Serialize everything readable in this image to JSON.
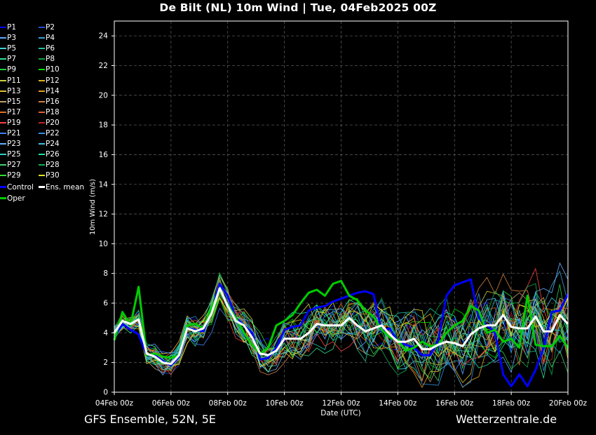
{
  "page": {
    "title": "De Bilt  (NL)  10m Wind | Tue, 04Feb2025 00Z",
    "footer_left": "GFS Ensemble, 52N, 5E",
    "footer_right": "Wetterzentrale.de"
  },
  "chart_data": {
    "type": "line",
    "title": "De Bilt  (NL)  10m Wind | Tue, 04Feb2025 00Z",
    "xlabel": "Date (UTC)",
    "ylabel": "10m Wind (m/s)",
    "x_ticks": [
      "04Feb 00z",
      "06Feb 00z",
      "08Feb 00z",
      "10Feb 00z",
      "12Feb 00z",
      "14Feb 00z",
      "16Feb 00z",
      "18Feb 00z",
      "20Feb 00z"
    ],
    "y_ticks": [
      "0",
      "2",
      "4",
      "6",
      "8",
      "10",
      "12",
      "14",
      "16",
      "18",
      "20",
      "22",
      "24"
    ],
    "ylim": [
      0,
      25
    ],
    "x_step_hours": 6,
    "grid": true,
    "legend_position": "left-outside",
    "background": "#000000",
    "series": [
      {
        "name": "Control",
        "color": "#0000ff",
        "width": 3,
        "values": [
          3.7,
          4.6,
          4.2,
          3.9,
          2.5,
          2.5,
          2.1,
          1.8,
          2.4,
          4.3,
          4.2,
          4.1,
          5.5,
          7.3,
          6.5,
          5.0,
          4.5,
          4.0,
          2.2,
          2.3,
          3.0,
          4.2,
          4.4,
          4.5,
          5.5,
          5.7,
          5.8,
          6.1,
          6.3,
          6.5,
          6.7,
          6.8,
          6.6,
          4.1,
          4.3,
          3.4,
          3.2,
          3.0,
          2.5,
          2.5,
          3.5,
          6.5,
          7.2,
          7.4,
          7.6,
          5.0,
          4.5,
          4.0,
          1.2,
          0.4,
          1.2,
          0.4,
          1.5,
          3.0,
          5.4,
          5.5,
          6.6
        ]
      },
      {
        "name": "Oper",
        "color": "#00cc00",
        "width": 3,
        "values": [
          3.5,
          5.4,
          4.5,
          7.1,
          2.5,
          2.6,
          2.4,
          2.3,
          2.5,
          4.5,
          4.6,
          4.3,
          5.7,
          6.8,
          5.9,
          5.0,
          4.0,
          3.2,
          2.6,
          3.0,
          4.5,
          4.8,
          5.2,
          6.0,
          6.7,
          6.9,
          6.5,
          7.3,
          7.5,
          6.5,
          6.2,
          5.5,
          5.1,
          4.2,
          3.7,
          3.5,
          2.8,
          3.0,
          3.4,
          3.1,
          3.2,
          4.0,
          4.5,
          4.8,
          5.8,
          5.5,
          4.0,
          4.2,
          3.4,
          3.6,
          3.0,
          6.5,
          3.2,
          3.1,
          3.1,
          3.8,
          3.0
        ]
      },
      {
        "name": "Ens. mean",
        "color": "#ffffff",
        "width": 3,
        "values": [
          4.0,
          4.8,
          4.6,
          4.9,
          2.6,
          2.4,
          2.0,
          1.9,
          2.5,
          4.3,
          4.1,
          4.3,
          5.3,
          7.0,
          5.8,
          4.8,
          4.5,
          3.7,
          2.6,
          2.5,
          2.8,
          3.6,
          3.6,
          3.6,
          4.0,
          4.6,
          4.5,
          4.5,
          4.5,
          5.0,
          4.5,
          4.1,
          4.3,
          4.5,
          3.9,
          3.4,
          3.4,
          3.6,
          2.9,
          2.9,
          3.2,
          3.4,
          3.3,
          3.1,
          3.9,
          4.3,
          4.5,
          4.5,
          5.2,
          4.4,
          4.3,
          4.3,
          5.1,
          4.1,
          4.1,
          5.2,
          4.6
        ]
      }
    ],
    "members": [
      {
        "name": "P1",
        "color": "#0000ff"
      },
      {
        "name": "P2",
        "color": "#1f4fd6"
      },
      {
        "name": "P3",
        "color": "#5aa8ff"
      },
      {
        "name": "P4",
        "color": "#3aa0cc"
      },
      {
        "name": "P5",
        "color": "#40d0d0"
      },
      {
        "name": "P6",
        "color": "#20c0a0"
      },
      {
        "name": "P7",
        "color": "#30e090"
      },
      {
        "name": "P8",
        "color": "#10a040"
      },
      {
        "name": "P9",
        "color": "#20d040"
      },
      {
        "name": "P10",
        "color": "#00e000"
      },
      {
        "name": "P11",
        "color": "#c8d040"
      },
      {
        "name": "P12",
        "color": "#d8b020"
      },
      {
        "name": "P13",
        "color": "#e0c030"
      },
      {
        "name": "P14",
        "color": "#e0a020"
      },
      {
        "name": "P15",
        "color": "#c0a070"
      },
      {
        "name": "P16",
        "color": "#d08040"
      },
      {
        "name": "P17",
        "color": "#e07020"
      },
      {
        "name": "P18",
        "color": "#e06030"
      },
      {
        "name": "P19",
        "color": "#ff4040"
      },
      {
        "name": "P20",
        "color": "#c02020"
      },
      {
        "name": "P21",
        "color": "#4080ff"
      },
      {
        "name": "P22",
        "color": "#3090e0"
      },
      {
        "name": "P23",
        "color": "#60b0ff"
      },
      {
        "name": "P24",
        "color": "#40c0e0"
      },
      {
        "name": "P25",
        "color": "#30d0c0"
      },
      {
        "name": "P26",
        "color": "#20e0a0"
      },
      {
        "name": "P27",
        "color": "#40d070"
      },
      {
        "name": "P28",
        "color": "#10b050"
      },
      {
        "name": "P29",
        "color": "#30e030"
      },
      {
        "name": "P30",
        "color": "#e0e020"
      }
    ],
    "legend_extra": [
      {
        "name": "Control",
        "color": "#0000ff"
      },
      {
        "name": "Ens. mean",
        "color": "#ffffff"
      },
      {
        "name": "Oper",
        "color": "#00cc00"
      }
    ]
  }
}
